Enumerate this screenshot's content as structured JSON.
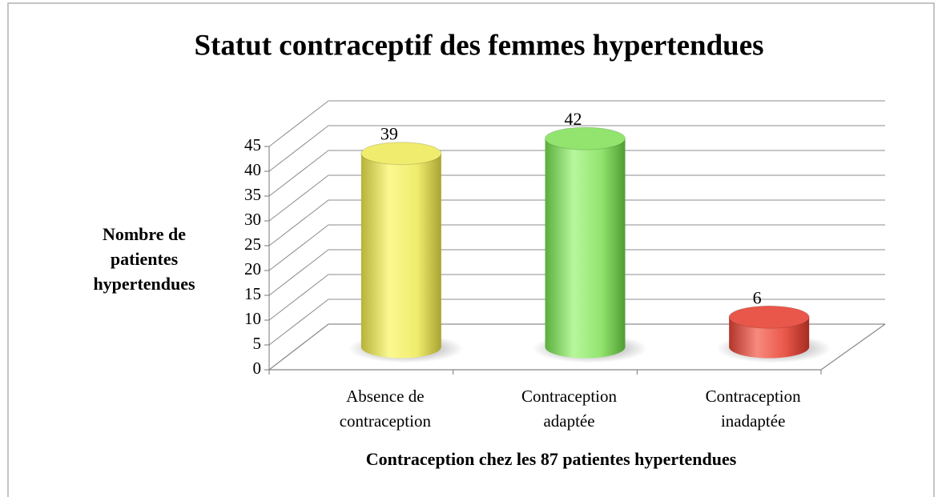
{
  "chart_data": {
    "type": "bar3d",
    "title": "Statut contraceptif des femmes hypertendues",
    "categories": [
      "Absence de\ncontraception",
      "Contraception\nadaptée",
      "Contraception\ninadaptée"
    ],
    "values": [
      39,
      42,
      6
    ],
    "colors": [
      "#f0ec6e",
      "#93e46f",
      "#e9574a"
    ],
    "y_label": [
      "Nombre de",
      "patientes",
      "hypertendues"
    ],
    "x_label": "Contraception chez les 87 patientes hypertendues",
    "ylim": [
      0,
      45
    ],
    "yticks": [
      0,
      5,
      10,
      15,
      20,
      25,
      30,
      35,
      40,
      45
    ],
    "grid": true
  }
}
